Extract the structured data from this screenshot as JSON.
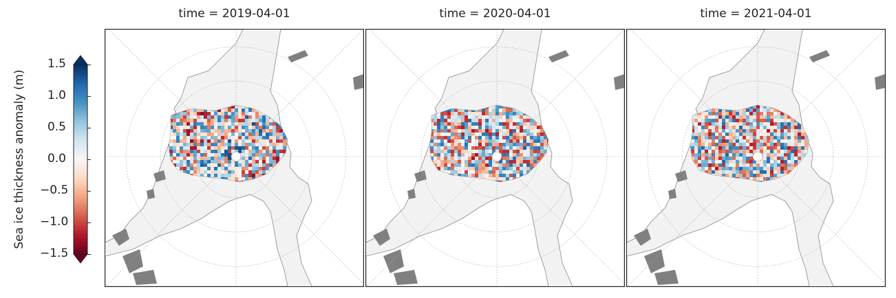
{
  "panels": [
    {
      "title": "time = 2019-04-01",
      "seed": 11,
      "bias": 0.15
    },
    {
      "title": "time = 2020-04-01",
      "seed": 29,
      "bias": -0.05
    },
    {
      "title": "time = 2021-04-01",
      "seed": 47,
      "bias": 0.0
    }
  ],
  "colorbar": {
    "label": "Sea ice thickness anomaly (m)",
    "ticks": [
      "1.5",
      "1.0",
      "0.5",
      "0.0",
      "−0.5",
      "−1.0",
      "−1.5"
    ],
    "min": -1.5,
    "max": 1.5,
    "colormap": "RdBu",
    "extend": "both"
  },
  "colors": {
    "land": "#ffffff",
    "ocean": "#f2f2f2",
    "lakes": "#808080",
    "coast": "#888888",
    "grid": "#aaaaaa"
  }
}
